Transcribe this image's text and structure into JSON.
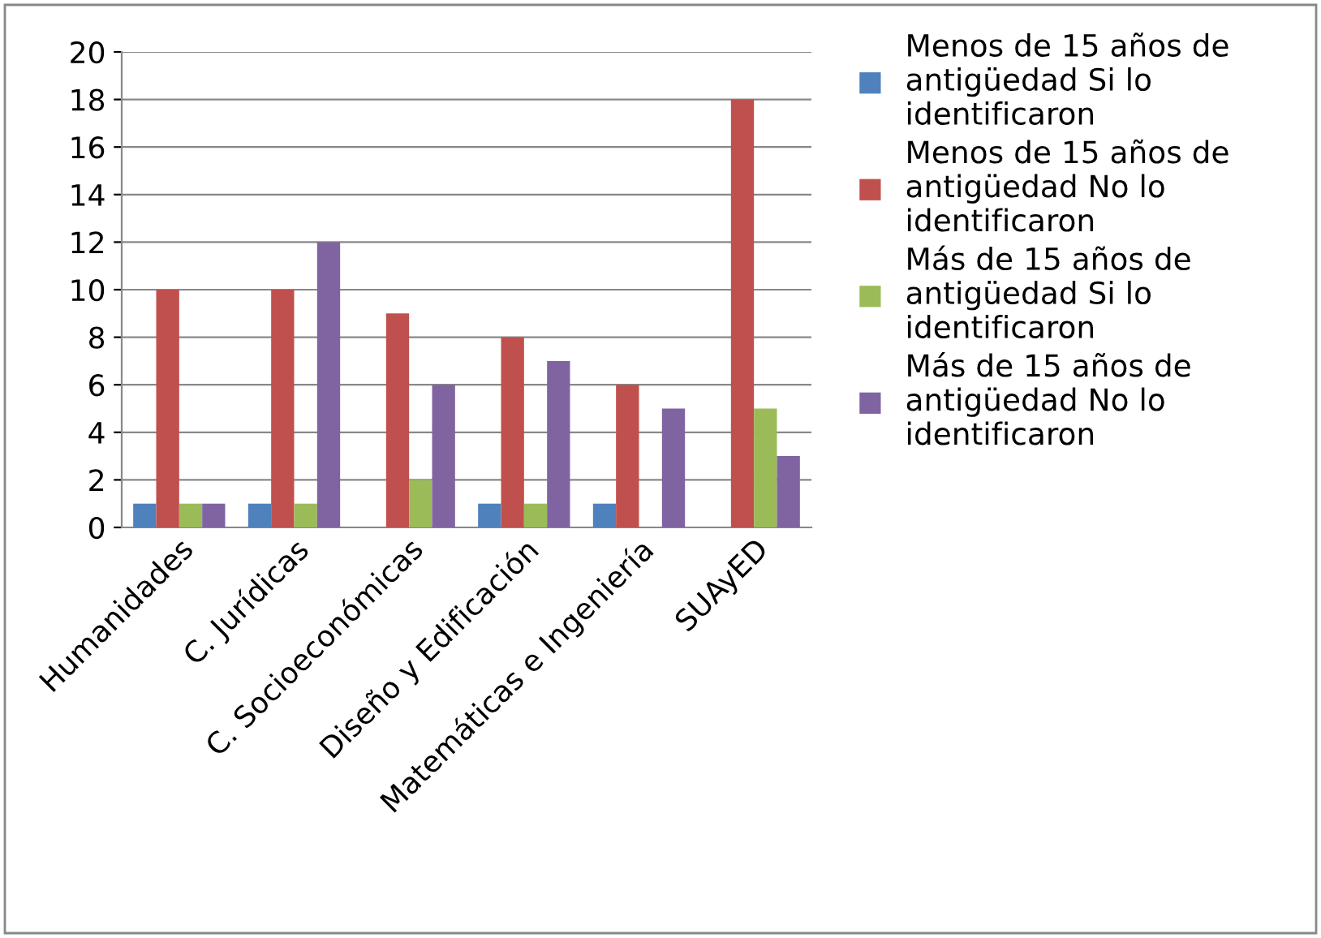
{
  "chart_data": {
    "type": "bar",
    "categories": [
      "Humanidades",
      "C. Jurídicas",
      "C. Socioeconómicas",
      "Diseño y Edificación",
      "Matemáticas e Ingeniería",
      "SUAyED"
    ],
    "series": [
      {
        "name": "Menos de 15 años de\nantigüedad Si lo\nidentificaron",
        "color": "#4f81bd",
        "values": [
          1,
          1,
          0,
          1,
          1,
          0
        ]
      },
      {
        "name": "Menos de 15 años de\nantigüedad No lo\nidentificaron",
        "color": "#c0504d",
        "values": [
          10,
          10,
          9,
          8,
          6,
          18
        ]
      },
      {
        "name": "Más de 15 años de\nantigüedad Si lo\nidentificaron",
        "color": "#9bbb59",
        "values": [
          1,
          1,
          2,
          1,
          0,
          5
        ]
      },
      {
        "name": "Más de 15 años de\nantigüedad No lo\nidentificaron",
        "color": "#8064a2",
        "values": [
          1,
          12,
          6,
          7,
          5,
          3
        ]
      }
    ],
    "ylim": [
      0,
      20
    ],
    "yticks": [
      0,
      2,
      4,
      6,
      8,
      10,
      12,
      14,
      16,
      18,
      20
    ],
    "grid": "y",
    "legend": "right"
  }
}
